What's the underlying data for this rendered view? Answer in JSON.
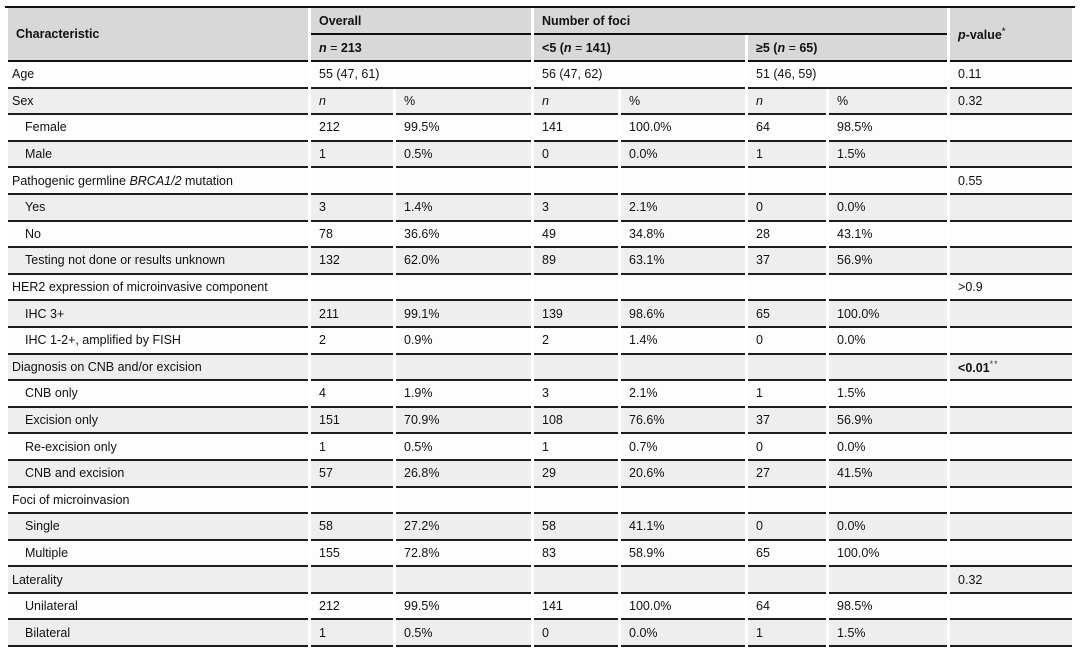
{
  "colors": {
    "header_bg": "#d8d8d8",
    "row_alt_bg": "#eeeeee",
    "row_bg": "#fdfdfd",
    "rule": "#111111",
    "text": "#111111"
  },
  "table": {
    "header": {
      "characteristic": [
        {
          "text": "Characteristic"
        }
      ],
      "overall": [
        {
          "text": "Overall"
        }
      ],
      "number_of_foci": [
        {
          "text": "Number of foci"
        }
      ],
      "p_value": [
        {
          "text": "p",
          "italic": true
        },
        {
          "text": "-value"
        },
        {
          "text": "*",
          "sup": true
        }
      ],
      "overall_n": [
        {
          "text": "n",
          "italic": true
        },
        {
          "text": " = ",
          "normal": true
        },
        {
          "text": "213"
        }
      ],
      "lt5_n": [
        {
          "text": "<5 ("
        },
        {
          "text": "n",
          "italic": true
        },
        {
          "text": " = ",
          "normal": true
        },
        {
          "text": "141)"
        }
      ],
      "ge5_n": [
        {
          "text": "≥5 ("
        },
        {
          "text": "n",
          "italic": true
        },
        {
          "text": " = ",
          "normal": true
        },
        {
          "text": "65)"
        }
      ]
    },
    "rows": [
      {
        "name": "age",
        "indent": false,
        "label": "Age",
        "cells": [
          {
            "t": "55 (47, 61)",
            "span": 2
          },
          {
            "t": "56 (47, 62)",
            "span": 2
          },
          {
            "t": "51 (46, 59)",
            "span": 2
          }
        ],
        "p": "0.11"
      },
      {
        "name": "sex",
        "indent": false,
        "label": "Sex",
        "cells": [
          {
            "segs": [
              {
                "text": "n",
                "italic": true
              }
            ]
          },
          {
            "t": "%"
          },
          {
            "segs": [
              {
                "text": "n",
                "italic": true
              }
            ]
          },
          {
            "t": "%"
          },
          {
            "segs": [
              {
                "text": "n",
                "italic": true
              }
            ]
          },
          {
            "t": "%"
          }
        ],
        "p": "0.32"
      },
      {
        "name": "sex-female",
        "indent": true,
        "label": "Female",
        "cells": [
          {
            "t": "212"
          },
          {
            "t": "99.5%"
          },
          {
            "t": "141"
          },
          {
            "t": "100.0%"
          },
          {
            "t": "64"
          },
          {
            "t": "98.5%"
          }
        ],
        "p": ""
      },
      {
        "name": "sex-male",
        "indent": true,
        "label": "Male",
        "cells": [
          {
            "t": "1"
          },
          {
            "t": "0.5%"
          },
          {
            "t": "0"
          },
          {
            "t": "0.0%"
          },
          {
            "t": "1"
          },
          {
            "t": "1.5%"
          }
        ],
        "p": ""
      },
      {
        "name": "brca-mutation",
        "indent": false,
        "label_segs": [
          {
            "text": "Pathogenic germline "
          },
          {
            "text": "BRCA1/2",
            "italic": true
          },
          {
            "text": " mutation"
          }
        ],
        "cells": [
          {
            "t": ""
          },
          {
            "t": ""
          },
          {
            "t": ""
          },
          {
            "t": ""
          },
          {
            "t": ""
          },
          {
            "t": ""
          }
        ],
        "p": "0.55"
      },
      {
        "name": "brca-yes",
        "indent": true,
        "label": "Yes",
        "cells": [
          {
            "t": "3"
          },
          {
            "t": "1.4%"
          },
          {
            "t": "3"
          },
          {
            "t": "2.1%"
          },
          {
            "t": "0"
          },
          {
            "t": "0.0%"
          }
        ],
        "p": ""
      },
      {
        "name": "brca-no",
        "indent": true,
        "label": "No",
        "cells": [
          {
            "t": "78"
          },
          {
            "t": "36.6%"
          },
          {
            "t": "49"
          },
          {
            "t": "34.8%"
          },
          {
            "t": "28"
          },
          {
            "t": "43.1%"
          }
        ],
        "p": ""
      },
      {
        "name": "brca-unknown",
        "indent": true,
        "label": "Testing not done or results unknown",
        "cells": [
          {
            "t": "132"
          },
          {
            "t": "62.0%"
          },
          {
            "t": "89"
          },
          {
            "t": "63.1%"
          },
          {
            "t": "37"
          },
          {
            "t": "56.9%"
          }
        ],
        "p": ""
      },
      {
        "name": "her2-expression",
        "indent": false,
        "label": "HER2 expression of microinvasive component",
        "cells": [
          {
            "t": ""
          },
          {
            "t": ""
          },
          {
            "t": ""
          },
          {
            "t": ""
          },
          {
            "t": ""
          },
          {
            "t": ""
          }
        ],
        "p": ">0.9"
      },
      {
        "name": "her2-ihc3",
        "indent": true,
        "label": "IHC 3+",
        "cells": [
          {
            "t": "211"
          },
          {
            "t": "99.1%"
          },
          {
            "t": "139"
          },
          {
            "t": "98.6%"
          },
          {
            "t": "65"
          },
          {
            "t": "100.0%"
          }
        ],
        "p": ""
      },
      {
        "name": "her2-ihc12-fish",
        "indent": true,
        "label": "IHC 1-2+, amplified by FISH",
        "cells": [
          {
            "t": "2"
          },
          {
            "t": "0.9%"
          },
          {
            "t": "2"
          },
          {
            "t": "1.4%"
          },
          {
            "t": "0"
          },
          {
            "t": "0.0%"
          }
        ],
        "p": ""
      },
      {
        "name": "diagnosis-cnb-excision",
        "indent": false,
        "label": "Diagnosis on CNB and/or excision",
        "cells": [
          {
            "t": ""
          },
          {
            "t": ""
          },
          {
            "t": ""
          },
          {
            "t": ""
          },
          {
            "t": ""
          },
          {
            "t": ""
          }
        ],
        "p_segs": [
          {
            "text": "<0.01",
            "bold": true
          },
          {
            "text": "**",
            "sup": true
          }
        ]
      },
      {
        "name": "cnb-only",
        "indent": true,
        "label": "CNB only",
        "cells": [
          {
            "t": "4"
          },
          {
            "t": "1.9%"
          },
          {
            "t": "3"
          },
          {
            "t": "2.1%"
          },
          {
            "t": "1"
          },
          {
            "t": "1.5%"
          }
        ],
        "p": ""
      },
      {
        "name": "excision-only",
        "indent": true,
        "label": "Excision only",
        "cells": [
          {
            "t": "151"
          },
          {
            "t": "70.9%"
          },
          {
            "t": "108"
          },
          {
            "t": "76.6%"
          },
          {
            "t": "37"
          },
          {
            "t": "56.9%"
          }
        ],
        "p": ""
      },
      {
        "name": "re-excision-only",
        "indent": true,
        "label": "Re-excision only",
        "cells": [
          {
            "t": "1"
          },
          {
            "t": "0.5%"
          },
          {
            "t": "1"
          },
          {
            "t": "0.7%"
          },
          {
            "t": "0"
          },
          {
            "t": "0.0%"
          }
        ],
        "p": ""
      },
      {
        "name": "cnb-and-excision",
        "indent": true,
        "label": "CNB and excision",
        "cells": [
          {
            "t": "57"
          },
          {
            "t": "26.8%"
          },
          {
            "t": "29"
          },
          {
            "t": "20.6%"
          },
          {
            "t": "27"
          },
          {
            "t": "41.5%"
          }
        ],
        "p": ""
      },
      {
        "name": "foci-of-microinvasion",
        "indent": false,
        "label": "Foci of microinvasion",
        "cells": [
          {
            "t": ""
          },
          {
            "t": ""
          },
          {
            "t": ""
          },
          {
            "t": ""
          },
          {
            "t": ""
          },
          {
            "t": ""
          }
        ],
        "p": ""
      },
      {
        "name": "foci-single",
        "indent": true,
        "label": "Single",
        "cells": [
          {
            "t": "58"
          },
          {
            "t": "27.2%"
          },
          {
            "t": "58"
          },
          {
            "t": "41.1%"
          },
          {
            "t": "0"
          },
          {
            "t": "0.0%"
          }
        ],
        "p": ""
      },
      {
        "name": "foci-multiple",
        "indent": true,
        "label": "Multiple",
        "cells": [
          {
            "t": "155"
          },
          {
            "t": "72.8%"
          },
          {
            "t": "83"
          },
          {
            "t": "58.9%"
          },
          {
            "t": "65"
          },
          {
            "t": "100.0%"
          }
        ],
        "p": ""
      },
      {
        "name": "laterality",
        "indent": false,
        "label": "Laterality",
        "cells": [
          {
            "t": ""
          },
          {
            "t": ""
          },
          {
            "t": ""
          },
          {
            "t": ""
          },
          {
            "t": ""
          },
          {
            "t": ""
          }
        ],
        "p": "0.32"
      },
      {
        "name": "laterality-unilateral",
        "indent": true,
        "label": "Unilateral",
        "cells": [
          {
            "t": "212"
          },
          {
            "t": "99.5%"
          },
          {
            "t": "141"
          },
          {
            "t": "100.0%"
          },
          {
            "t": "64"
          },
          {
            "t": "98.5%"
          }
        ],
        "p": ""
      },
      {
        "name": "laterality-bilateral",
        "indent": true,
        "label": "Bilateral",
        "cells": [
          {
            "t": "1"
          },
          {
            "t": "0.5%"
          },
          {
            "t": "0"
          },
          {
            "t": "0.0%"
          },
          {
            "t": "1"
          },
          {
            "t": "1.5%"
          }
        ],
        "p": ""
      }
    ]
  }
}
